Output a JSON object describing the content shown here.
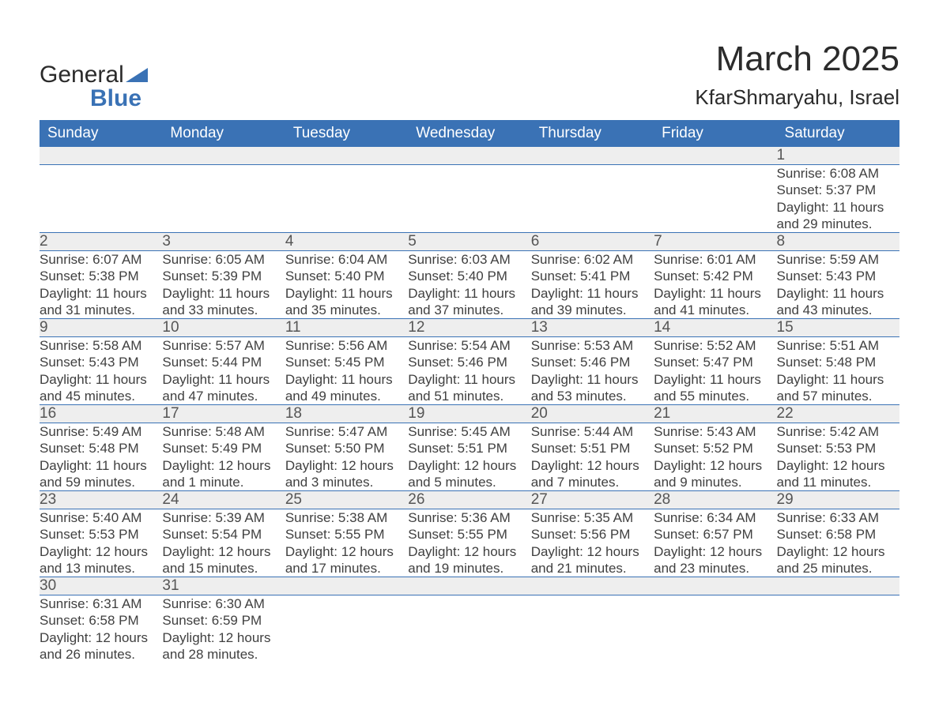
{
  "brand": {
    "part1": "General",
    "part2": "Blue"
  },
  "title": "March 2025",
  "location": "KfarShmaryahu, Israel",
  "colors": {
    "header_bg": "#3a72b5",
    "header_text": "#ffffff",
    "daynum_bg": "#eeeeee",
    "row_divider": "#3a72b5",
    "body_text": "#404040",
    "title_text": "#2b2b2b",
    "page_bg": "#ffffff"
  },
  "typography": {
    "font_family": "Arial, Helvetica, sans-serif",
    "title_fontsize": 44,
    "location_fontsize": 26,
    "header_fontsize": 19,
    "daynum_fontsize": 19,
    "detail_fontsize": 17
  },
  "weekdays": [
    "Sunday",
    "Monday",
    "Tuesday",
    "Wednesday",
    "Thursday",
    "Friday",
    "Saturday"
  ],
  "weeks": [
    [
      null,
      null,
      null,
      null,
      null,
      null,
      {
        "n": "1",
        "sunrise": "6:08 AM",
        "sunset": "5:37 PM",
        "daylight": "11 hours and 29 minutes."
      }
    ],
    [
      {
        "n": "2",
        "sunrise": "6:07 AM",
        "sunset": "5:38 PM",
        "daylight": "11 hours and 31 minutes."
      },
      {
        "n": "3",
        "sunrise": "6:05 AM",
        "sunset": "5:39 PM",
        "daylight": "11 hours and 33 minutes."
      },
      {
        "n": "4",
        "sunrise": "6:04 AM",
        "sunset": "5:40 PM",
        "daylight": "11 hours and 35 minutes."
      },
      {
        "n": "5",
        "sunrise": "6:03 AM",
        "sunset": "5:40 PM",
        "daylight": "11 hours and 37 minutes."
      },
      {
        "n": "6",
        "sunrise": "6:02 AM",
        "sunset": "5:41 PM",
        "daylight": "11 hours and 39 minutes."
      },
      {
        "n": "7",
        "sunrise": "6:01 AM",
        "sunset": "5:42 PM",
        "daylight": "11 hours and 41 minutes."
      },
      {
        "n": "8",
        "sunrise": "5:59 AM",
        "sunset": "5:43 PM",
        "daylight": "11 hours and 43 minutes."
      }
    ],
    [
      {
        "n": "9",
        "sunrise": "5:58 AM",
        "sunset": "5:43 PM",
        "daylight": "11 hours and 45 minutes."
      },
      {
        "n": "10",
        "sunrise": "5:57 AM",
        "sunset": "5:44 PM",
        "daylight": "11 hours and 47 minutes."
      },
      {
        "n": "11",
        "sunrise": "5:56 AM",
        "sunset": "5:45 PM",
        "daylight": "11 hours and 49 minutes."
      },
      {
        "n": "12",
        "sunrise": "5:54 AM",
        "sunset": "5:46 PM",
        "daylight": "11 hours and 51 minutes."
      },
      {
        "n": "13",
        "sunrise": "5:53 AM",
        "sunset": "5:46 PM",
        "daylight": "11 hours and 53 minutes."
      },
      {
        "n": "14",
        "sunrise": "5:52 AM",
        "sunset": "5:47 PM",
        "daylight": "11 hours and 55 minutes."
      },
      {
        "n": "15",
        "sunrise": "5:51 AM",
        "sunset": "5:48 PM",
        "daylight": "11 hours and 57 minutes."
      }
    ],
    [
      {
        "n": "16",
        "sunrise": "5:49 AM",
        "sunset": "5:48 PM",
        "daylight": "11 hours and 59 minutes."
      },
      {
        "n": "17",
        "sunrise": "5:48 AM",
        "sunset": "5:49 PM",
        "daylight": "12 hours and 1 minute."
      },
      {
        "n": "18",
        "sunrise": "5:47 AM",
        "sunset": "5:50 PM",
        "daylight": "12 hours and 3 minutes."
      },
      {
        "n": "19",
        "sunrise": "5:45 AM",
        "sunset": "5:51 PM",
        "daylight": "12 hours and 5 minutes."
      },
      {
        "n": "20",
        "sunrise": "5:44 AM",
        "sunset": "5:51 PM",
        "daylight": "12 hours and 7 minutes."
      },
      {
        "n": "21",
        "sunrise": "5:43 AM",
        "sunset": "5:52 PM",
        "daylight": "12 hours and 9 minutes."
      },
      {
        "n": "22",
        "sunrise": "5:42 AM",
        "sunset": "5:53 PM",
        "daylight": "12 hours and 11 minutes."
      }
    ],
    [
      {
        "n": "23",
        "sunrise": "5:40 AM",
        "sunset": "5:53 PM",
        "daylight": "12 hours and 13 minutes."
      },
      {
        "n": "24",
        "sunrise": "5:39 AM",
        "sunset": "5:54 PM",
        "daylight": "12 hours and 15 minutes."
      },
      {
        "n": "25",
        "sunrise": "5:38 AM",
        "sunset": "5:55 PM",
        "daylight": "12 hours and 17 minutes."
      },
      {
        "n": "26",
        "sunrise": "5:36 AM",
        "sunset": "5:55 PM",
        "daylight": "12 hours and 19 minutes."
      },
      {
        "n": "27",
        "sunrise": "5:35 AM",
        "sunset": "5:56 PM",
        "daylight": "12 hours and 21 minutes."
      },
      {
        "n": "28",
        "sunrise": "6:34 AM",
        "sunset": "6:57 PM",
        "daylight": "12 hours and 23 minutes."
      },
      {
        "n": "29",
        "sunrise": "6:33 AM",
        "sunset": "6:58 PM",
        "daylight": "12 hours and 25 minutes."
      }
    ],
    [
      {
        "n": "30",
        "sunrise": "6:31 AM",
        "sunset": "6:58 PM",
        "daylight": "12 hours and 26 minutes."
      },
      {
        "n": "31",
        "sunrise": "6:30 AM",
        "sunset": "6:59 PM",
        "daylight": "12 hours and 28 minutes."
      },
      null,
      null,
      null,
      null,
      null
    ]
  ],
  "labels": {
    "sunrise": "Sunrise:",
    "sunset": "Sunset:",
    "daylight": "Daylight:"
  }
}
